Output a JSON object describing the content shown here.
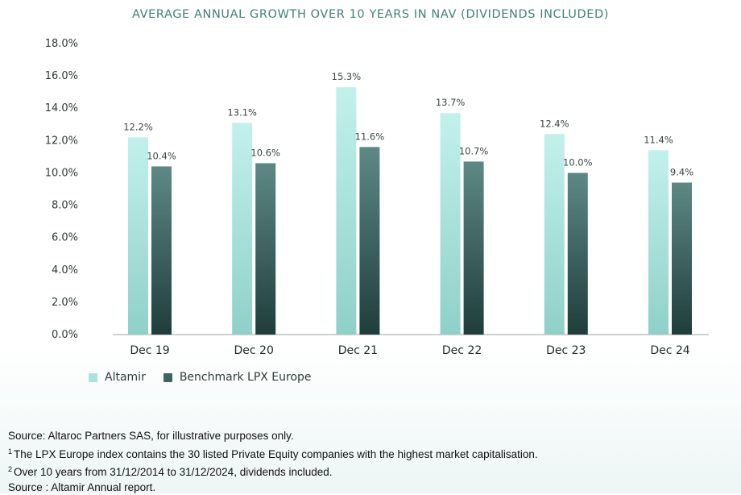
{
  "chart_data": {
    "type": "bar",
    "title": "AVERAGE ANNUAL GROWTH OVER 10 YEARS IN NAV (DIVIDENDS INCLUDED)",
    "categories": [
      "Dec 19",
      "Dec 20",
      "Dec 21",
      "Dec 22",
      "Dec 23",
      "Dec 24"
    ],
    "series": [
      {
        "name": "Altamir",
        "values": [
          12.2,
          13.1,
          15.3,
          13.7,
          12.4,
          11.4
        ],
        "labels": [
          "12.2%",
          "13.1%",
          "15.3%",
          "13.7%",
          "12.4%",
          "11.4%"
        ],
        "color": "#a9e2dc"
      },
      {
        "name": "Benchmark LPX Europe",
        "values": [
          10.4,
          10.6,
          11.6,
          10.7,
          10.0,
          9.4
        ],
        "labels": [
          "10.4%",
          "10.6%",
          "11.6%",
          "10.7%",
          "10.0%",
          "9.4%"
        ],
        "color": "#3b6662"
      }
    ],
    "ylim": [
      0,
      18
    ],
    "yticks": [
      "0.0%",
      "2.0%",
      "4.0%",
      "6.0%",
      "8.0%",
      "10.0%",
      "12.0%",
      "14.0%",
      "16.0%",
      "18.0%"
    ],
    "ytick_values": [
      0,
      2,
      4,
      6,
      8,
      10,
      12,
      14,
      16,
      18
    ],
    "grid": false,
    "legend_position": "bottom-left"
  },
  "footer": {
    "line1": "Source: Altaroc Partners SAS, for illustrative purposes only.",
    "line2_sup": "1",
    "line2": "The LPX Europe index contains the 30 listed Private Equity companies with the highest market capitalisation.",
    "line3_sup": "2",
    "line3": "Over 10 years from 31/12/2014 to 31/12/2024, dividends included.",
    "line4": "Source : Altamir Annual report."
  }
}
